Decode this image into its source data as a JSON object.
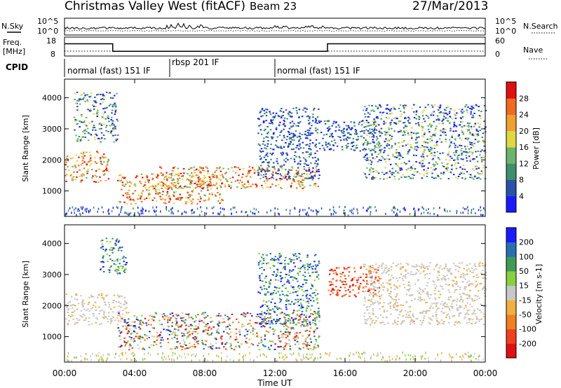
{
  "header": {
    "station": "Christmas Valley West (fitACF)",
    "beam": "Beam 23",
    "date": "27/Mar/2013"
  },
  "noise_panel": {
    "left_label": "N.Sky",
    "right_label": "N.Search",
    "left_ticks": [
      "10^5",
      "10^0"
    ],
    "right_ticks": [
      "10^5",
      "10^0"
    ]
  },
  "freq_panel": {
    "left_label_1": "Freq.",
    "left_label_2": "[MHz]",
    "right_label": "Nave",
    "left_ticks": [
      "18",
      "8"
    ],
    "right_ticks": [
      "60",
      "0"
    ],
    "freq_steps_hours": [
      0,
      2.75,
      15.0,
      24
    ],
    "freq_levels_mhz": [
      14.5,
      10.5,
      14.5
    ]
  },
  "cpid": {
    "label": "CPID",
    "segments": [
      {
        "label": "normal (fast) 151 IF",
        "start_hour": 0,
        "end_hour": 6
      },
      {
        "label": "rbsp 201 IF",
        "start_hour": 6,
        "end_hour": 12
      },
      {
        "label": "normal (fast) 151 IF",
        "start_hour": 12,
        "end_hour": 24
      }
    ]
  },
  "chart_data": [
    {
      "type": "heatmap",
      "title": "",
      "xlabel": "Time UT",
      "ylabel": "Slant Range [km]",
      "xlim": [
        0,
        24
      ],
      "ylim": [
        180,
        4600
      ],
      "x_tick_labels": [
        "00:00",
        "04:00",
        "08:00",
        "12:00",
        "16:00",
        "20:00",
        "00:00"
      ],
      "y_tick_labels": [
        "1000",
        "2000",
        "3000",
        "4000"
      ],
      "colorbar": {
        "label": "Power [dB]",
        "ticks": [
          "4",
          "8",
          "12",
          "16",
          "20",
          "24",
          "28"
        ],
        "colors": [
          "#1a1aff",
          "#2a52a8",
          "#3f8f6a",
          "#6cb46c",
          "#e0d840",
          "#f0a030",
          "#f06a20",
          "#e01010"
        ]
      },
      "echo_bands": [
        {
          "start_hour": 0.0,
          "end_hour": 2.5,
          "range_km": [
            1300,
            2300
          ],
          "level": "strong"
        },
        {
          "start_hour": 0.5,
          "end_hour": 3.0,
          "range_km": [
            2600,
            4200
          ],
          "level": "moderate"
        },
        {
          "start_hour": 3.0,
          "end_hour": 9.0,
          "range_km": [
            600,
            1600
          ],
          "level": "strong"
        },
        {
          "start_hour": 5.0,
          "end_hour": 14.5,
          "range_km": [
            1100,
            1800
          ],
          "level": "strong"
        },
        {
          "start_hour": 11.0,
          "end_hour": 14.5,
          "range_km": [
            1400,
            3700
          ],
          "level": "weak"
        },
        {
          "start_hour": 14.5,
          "end_hour": 18.0,
          "range_km": [
            2300,
            3300
          ],
          "level": "weak"
        },
        {
          "start_hour": 17.0,
          "end_hour": 24.0,
          "range_km": [
            1400,
            3800
          ],
          "level": "moderate"
        }
      ]
    },
    {
      "type": "heatmap",
      "title": "",
      "xlabel": "Time UT",
      "ylabel": "Slant Range [km]",
      "xlim": [
        0,
        24
      ],
      "ylim": [
        180,
        4600
      ],
      "x_tick_labels": [
        "00:00",
        "04:00",
        "08:00",
        "12:00",
        "16:00",
        "20:00",
        "00:00"
      ],
      "y_tick_labels": [
        "1000",
        "2000",
        "3000",
        "4000"
      ],
      "colorbar": {
        "label": "Velocity [m s-1]",
        "ticks": [
          "200",
          "100",
          "50",
          "15",
          "-15",
          "-50",
          "-100",
          "-200"
        ],
        "colors": [
          "#1a1aff",
          "#2a70b0",
          "#3f9a55",
          "#88d040",
          "#c8c8c8",
          "#f0b040",
          "#f08020",
          "#f04020",
          "#e01010"
        ]
      },
      "echo_bands": [
        {
          "start_hour": 0.0,
          "end_hour": 3.5,
          "range_km": [
            1400,
            2400
          ],
          "level": "ground scatter"
        },
        {
          "start_hour": 2.0,
          "end_hour": 3.5,
          "range_km": [
            3000,
            4200
          ],
          "level": "positive"
        },
        {
          "start_hour": 3.0,
          "end_hour": 14.5,
          "range_km": [
            600,
            1800
          ],
          "level": "mixed"
        },
        {
          "start_hour": 11.0,
          "end_hour": 14.5,
          "range_km": [
            1400,
            3700
          ],
          "level": "positive"
        },
        {
          "start_hour": 15.0,
          "end_hour": 18.0,
          "range_km": [
            2300,
            3300
          ],
          "level": "negative"
        },
        {
          "start_hour": 17.0,
          "end_hour": 24.0,
          "range_km": [
            1400,
            3400
          ],
          "level": "ground scatter"
        }
      ]
    }
  ],
  "colors": {
    "frame": "#000000",
    "background": "#ffffff"
  }
}
